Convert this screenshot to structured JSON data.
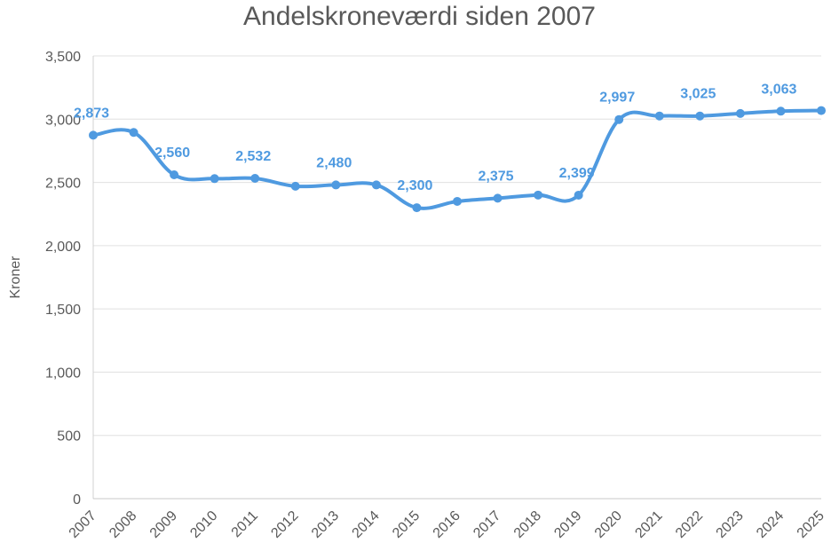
{
  "chart_data": {
    "type": "line",
    "title": "Andelskroneværdi siden 2007",
    "ylabel": "Kroner",
    "xlabel": "",
    "x": [
      "2007",
      "2008",
      "2009",
      "2010",
      "2011",
      "2012",
      "2013",
      "2014",
      "2015",
      "2016",
      "2017",
      "2018",
      "2019",
      "2020",
      "2021",
      "2022",
      "2023",
      "2024",
      "2025"
    ],
    "values": [
      2873,
      2895,
      2560,
      2530,
      2532,
      2470,
      2480,
      2480,
      2300,
      2350,
      2375,
      2400,
      2399,
      2997,
      3025,
      3025,
      3045,
      3063,
      3068
    ],
    "data_labels": [
      {
        "index": 0,
        "text": "2,873"
      },
      {
        "index": 2,
        "text": "2,560"
      },
      {
        "index": 4,
        "text": "2,532"
      },
      {
        "index": 6,
        "text": "2,480"
      },
      {
        "index": 8,
        "text": "2,300"
      },
      {
        "index": 10,
        "text": "2,375"
      },
      {
        "index": 12,
        "text": "2,399"
      },
      {
        "index": 13,
        "text": "2,997"
      },
      {
        "index": 15,
        "text": "3,025"
      },
      {
        "index": 17,
        "text": "3,063"
      }
    ],
    "yticks": [
      "0",
      "500",
      "1,000",
      "1,500",
      "2,000",
      "2,500",
      "3,000",
      "3,500"
    ],
    "ylim": [
      0,
      3500
    ],
    "grid": true,
    "line_color": "#4f9ae0",
    "gridline_color": "#e0e0e0"
  }
}
